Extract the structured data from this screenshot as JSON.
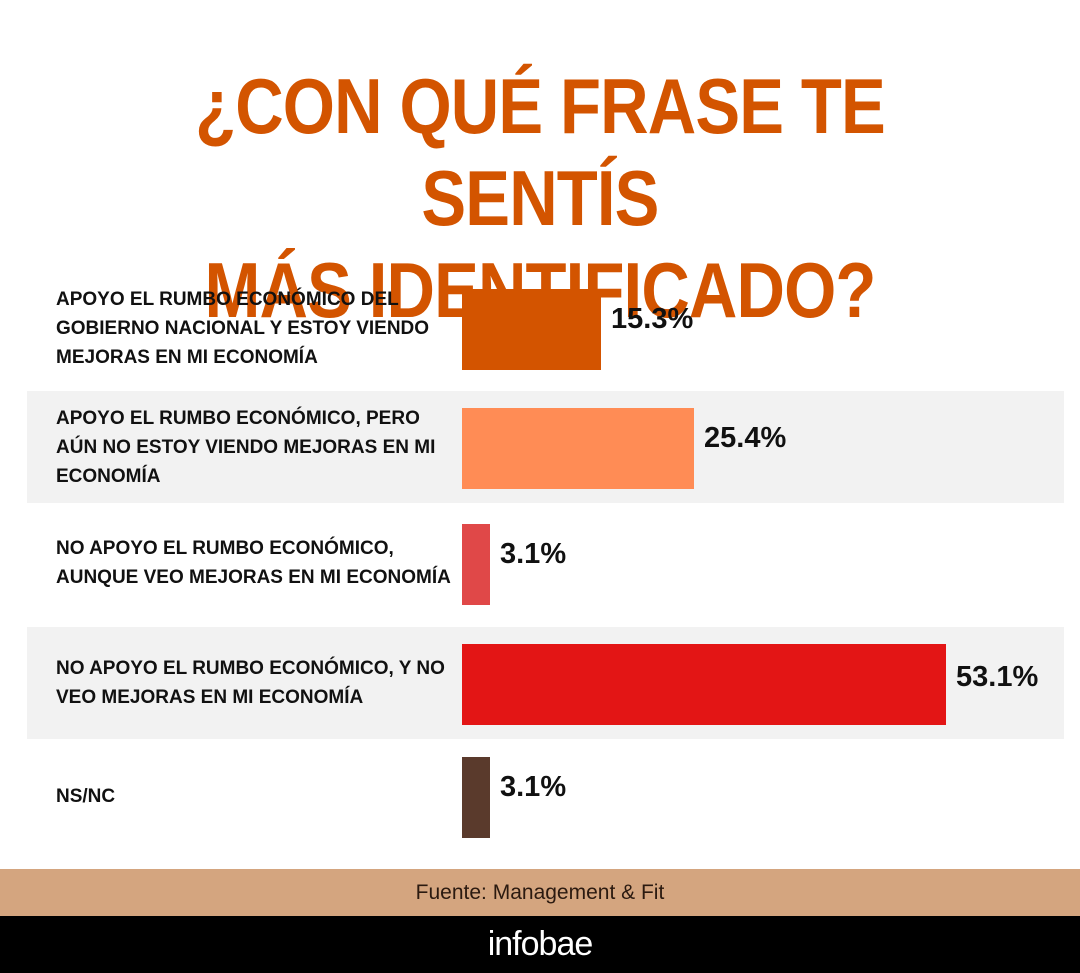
{
  "chart_data": {
    "type": "bar",
    "orientation": "horizontal",
    "title_lines": [
      "¿CON QUÉ FRASE TE SENTÍS",
      "MÁS IDENTIFICADO?"
    ],
    "categories": [
      "APOYO EL RUMBO ECONÓMICO DEL GOBIERNO NACIONAL Y ESTOY VIENDO MEJORAS EN MI ECONOMÍA",
      "APOYO EL RUMBO ECONÓMICO, PERO AÚN NO ESTOY VIENDO MEJORAS EN MI ECONOMÍA",
      "NO APOYO EL RUMBO ECONÓMICO, AUNQUE VEO MEJORAS EN MI ECONOMÍA",
      "NO APOYO EL RUMBO ECONÓMICO, Y NO VEO MEJORAS EN MI ECONOMÍA",
      "NS/NC"
    ],
    "values": [
      15.3,
      25.4,
      3.1,
      53.1,
      3.1
    ],
    "value_labels": [
      "15.3%",
      "25.4%",
      "3.1%",
      "53.1%",
      "3.1%"
    ],
    "colors": [
      "#d35400",
      "#ff8c55",
      "#e04848",
      "#e31515",
      "#5a3a2c"
    ],
    "grid": false,
    "legend": "none"
  },
  "source": "Fuente: Management & Fit",
  "brand": "infobae"
}
